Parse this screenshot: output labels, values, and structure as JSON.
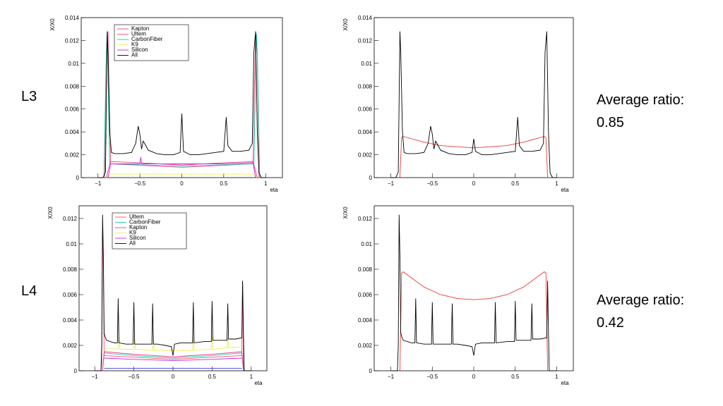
{
  "rows": [
    {
      "label": "L3",
      "ratio_title": "Average ratio:",
      "ratio_value": "0.85"
    },
    {
      "label": "L4",
      "ratio_title": "Average ratio:",
      "ratio_value": "0.42"
    }
  ],
  "colors": {
    "All": "#000000",
    "Kapton": "#e8368f",
    "Ultem": "#ff4f7a",
    "CarbonFiber": "#18c9a8",
    "K9": "#ecec5a",
    "Silicon": "#cc22dd",
    "RedFit": "#e83a3a",
    "Blue": "#3b3bdb"
  },
  "chart_data": [
    {
      "type": "line",
      "panel": "L3-left",
      "xlabel": "eta",
      "ylabel": "X/X0",
      "xlim": [
        -1.2,
        1.2
      ],
      "ylim": [
        0,
        0.014
      ],
      "xticks": [
        -1,
        -0.5,
        0,
        0.5,
        1
      ],
      "xtick_labels": [
        "−1",
        "−0.5",
        "0",
        "0.5",
        "1"
      ],
      "yticks": [
        0,
        0.002,
        0.004,
        0.006,
        0.008,
        0.01,
        0.012,
        0.014
      ],
      "ytick_labels": [
        "0",
        "0.002",
        "0.004",
        "0.006",
        "0.008",
        "0.01",
        "0.012",
        "0.014"
      ],
      "legend": {
        "position": "top-left",
        "entries": [
          "Kapton",
          "Ultem",
          "CarbonFiber",
          "K9",
          "Silicon",
          "All"
        ]
      },
      "series": [
        {
          "name": "All",
          "color_key": "All",
          "x": [
            -1.0,
            -0.94,
            -0.91,
            -0.89,
            -0.88,
            -0.86,
            -0.84,
            -0.8,
            -0.7,
            -0.6,
            -0.55,
            -0.52,
            -0.5,
            -0.48,
            -0.46,
            -0.4,
            -0.3,
            -0.2,
            -0.1,
            -0.02,
            0.0,
            0.02,
            0.1,
            0.2,
            0.3,
            0.4,
            0.5,
            0.53,
            0.55,
            0.6,
            0.7,
            0.8,
            0.84,
            0.86,
            0.88,
            0.9,
            0.92,
            0.95,
            1.0
          ],
          "y": [
            0,
            0,
            0.0005,
            0.0128,
            0.011,
            0.004,
            0.0022,
            0.0021,
            0.0021,
            0.0022,
            0.003,
            0.0045,
            0.0038,
            0.0025,
            0.0032,
            0.0024,
            0.0021,
            0.002,
            0.002,
            0.0022,
            0.0056,
            0.0023,
            0.002,
            0.002,
            0.0021,
            0.0022,
            0.0023,
            0.0053,
            0.0028,
            0.0023,
            0.0023,
            0.0024,
            0.003,
            0.011,
            0.0128,
            0.004,
            0.0004,
            0,
            0
          ]
        },
        {
          "name": "Kapton",
          "color_key": "Kapton",
          "x": [
            -0.9,
            -0.85,
            -0.5,
            0,
            0.5,
            0.85,
            0.9
          ],
          "y": [
            0,
            0.0014,
            0.0013,
            0.0011,
            0.0013,
            0.0014,
            0
          ]
        },
        {
          "name": "Ultem",
          "color_key": "Ultem",
          "x": [
            -0.92,
            -0.9,
            -0.88,
            -0.85,
            0,
            0.85,
            0.88,
            0.9,
            0.92
          ],
          "y": [
            0,
            0.011,
            0.0128,
            0.0012,
            0.0009,
            0.0012,
            0.0128,
            0.011,
            0
          ]
        },
        {
          "name": "CarbonFiber",
          "color_key": "CarbonFiber",
          "x": [
            -0.93,
            -0.9,
            -0.89,
            -0.86,
            0,
            0.86,
            0.89,
            0.9,
            0.93
          ],
          "y": [
            0,
            0.011,
            0.0126,
            0.0012,
            0.001,
            0.0012,
            0.0126,
            0.011,
            0
          ]
        },
        {
          "name": "K9",
          "color_key": "K9",
          "x": [
            -0.9,
            -0.85,
            -0.5,
            0,
            0.5,
            0.85,
            0.9
          ],
          "y": [
            0,
            0.0003,
            0.0003,
            0.0003,
            0.0003,
            0.0003,
            0
          ]
        },
        {
          "name": "Silicon",
          "color_key": "Silicon",
          "x": [
            -0.88,
            -0.85,
            -0.5,
            -0.49,
            -0.48,
            0,
            0.5,
            0.85,
            0.88
          ],
          "y": [
            0,
            0.0012,
            0.0012,
            0.0018,
            0.0012,
            0.0012,
            0.0012,
            0.0013,
            0
          ]
        }
      ]
    },
    {
      "type": "line",
      "panel": "L3-right",
      "xlabel": "eta",
      "ylabel": "X/X0",
      "xlim": [
        -1.2,
        1.2
      ],
      "ylim": [
        0,
        0.014
      ],
      "xticks": [
        -1,
        -0.5,
        0,
        0.5,
        1
      ],
      "xtick_labels": [
        "−1",
        "−0.5",
        "0",
        "0.5",
        "1"
      ],
      "yticks": [
        0,
        0.002,
        0.004,
        0.006,
        0.008,
        0.01,
        0.012,
        0.014
      ],
      "ytick_labels": [
        "0",
        "0.002",
        "0.004",
        "0.006",
        "0.008",
        "0.01",
        "0.012",
        "0.014"
      ],
      "series": [
        {
          "color_key": "All",
          "x": [
            -1.0,
            -0.94,
            -0.91,
            -0.89,
            -0.88,
            -0.86,
            -0.84,
            -0.8,
            -0.7,
            -0.6,
            -0.55,
            -0.52,
            -0.5,
            -0.48,
            -0.46,
            -0.4,
            -0.3,
            -0.2,
            -0.1,
            -0.02,
            0.0,
            0.02,
            0.1,
            0.2,
            0.3,
            0.4,
            0.5,
            0.53,
            0.55,
            0.6,
            0.7,
            0.8,
            0.84,
            0.86,
            0.88,
            0.9,
            0.92,
            0.95,
            1.0
          ],
          "y": [
            0,
            0,
            0.0005,
            0.0128,
            0.011,
            0.004,
            0.0022,
            0.0021,
            0.0021,
            0.0022,
            0.003,
            0.0045,
            0.0038,
            0.0025,
            0.0032,
            0.0024,
            0.0021,
            0.002,
            0.002,
            0.0022,
            0.0034,
            0.0023,
            0.002,
            0.002,
            0.0021,
            0.0022,
            0.0023,
            0.0053,
            0.0028,
            0.0023,
            0.0023,
            0.0024,
            0.003,
            0.011,
            0.0128,
            0.004,
            0.0004,
            0,
            0
          ]
        },
        {
          "color_key": "RedFit",
          "x": [
            -0.89,
            -0.87,
            -0.85,
            -0.6,
            -0.4,
            -0.2,
            0,
            0.2,
            0.4,
            0.6,
            0.85,
            0.87,
            0.89
          ],
          "y": [
            0,
            0.0035,
            0.0036,
            0.0031,
            0.0028,
            0.0027,
            0.0026,
            0.0027,
            0.0028,
            0.0031,
            0.0036,
            0.0035,
            0
          ]
        }
      ]
    },
    {
      "type": "line",
      "panel": "L4-left",
      "xlabel": "eta",
      "ylabel": "X/X0",
      "xlim": [
        -1.2,
        1.2
      ],
      "ylim": [
        0,
        0.013
      ],
      "xticks": [
        -1,
        -0.5,
        0,
        0.5,
        1
      ],
      "xtick_labels": [
        "−1",
        "−0.5",
        "0",
        "0.5",
        "1"
      ],
      "yticks": [
        0,
        0.002,
        0.004,
        0.006,
        0.008,
        0.01,
        0.012
      ],
      "ytick_labels": [
        "0",
        "0.002",
        "0.004",
        "0.006",
        "0.008",
        "0.01",
        "0.012"
      ],
      "legend": {
        "position": "top-left",
        "entries": [
          "Ultem",
          "CarbonFiber",
          "Kapton",
          "K9",
          "Silicon",
          "All"
        ]
      },
      "series": [
        {
          "name": "All",
          "color_key": "All",
          "x": [
            -1.0,
            -0.92,
            -0.91,
            -0.9,
            -0.89,
            -0.88,
            -0.87,
            -0.85,
            -0.75,
            -0.71,
            -0.7,
            -0.69,
            -0.6,
            -0.51,
            -0.5,
            -0.49,
            -0.4,
            -0.27,
            -0.26,
            -0.25,
            -0.2,
            -0.1,
            -0.02,
            0.0,
            0.02,
            0.1,
            0.2,
            0.25,
            0.26,
            0.27,
            0.4,
            0.49,
            0.5,
            0.51,
            0.6,
            0.69,
            0.7,
            0.71,
            0.8,
            0.88,
            0.89,
            0.9,
            0.91,
            1.0
          ],
          "y": [
            0,
            0,
            0.002,
            0.0123,
            0.009,
            0.003,
            0.0027,
            0.0024,
            0.0022,
            0.0022,
            0.0057,
            0.0022,
            0.0021,
            0.0021,
            0.0054,
            0.0021,
            0.0021,
            0.0021,
            0.0053,
            0.0021,
            0.0021,
            0.002,
            0.0019,
            0.0012,
            0.0021,
            0.0022,
            0.0022,
            0.0022,
            0.0054,
            0.0022,
            0.0023,
            0.0023,
            0.0055,
            0.0024,
            0.0024,
            0.0024,
            0.0053,
            0.0025,
            0.0025,
            0.0026,
            0.0071,
            0.003,
            0,
            0
          ]
        },
        {
          "name": "Ultem",
          "color_key": "Ultem",
          "x": [
            -0.92,
            -0.91,
            -0.9,
            -0.89,
            -0.88,
            0,
            0.88,
            0.89,
            0.9,
            0.91
          ],
          "y": [
            0,
            0.0006,
            0.011,
            0.008,
            0.0012,
            0.0009,
            0.0012,
            0.007,
            0.0006,
            0
          ]
        },
        {
          "name": "CarbonFiber",
          "color_key": "CarbonFiber",
          "x": [
            -0.9,
            -0.88,
            -0.5,
            0,
            0.5,
            0.88,
            0.9
          ],
          "y": [
            0,
            0.0014,
            0.0012,
            0.001,
            0.0012,
            0.0014,
            0
          ]
        },
        {
          "name": "Kapton",
          "color_key": "Kapton",
          "x": [
            -0.9,
            -0.88,
            -0.5,
            0,
            0.5,
            0.88,
            0.9
          ],
          "y": [
            0,
            0.0015,
            0.0013,
            0.0011,
            0.0013,
            0.0015,
            0
          ]
        },
        {
          "name": "K9",
          "color_key": "K9",
          "x": [
            -0.88,
            -0.7,
            -0.69,
            -0.68,
            -0.5,
            -0.49,
            -0.48,
            -0.26,
            -0.25,
            -0.24,
            0,
            0.25,
            0.26,
            0.27,
            0.49,
            0.5,
            0.51,
            0.69,
            0.7,
            0.71,
            0.88
          ],
          "y": [
            0.0018,
            0.0017,
            0.0026,
            0.0017,
            0.0017,
            0.0027,
            0.0017,
            0.0016,
            0.0026,
            0.0016,
            0.0016,
            0.0016,
            0.0026,
            0.0016,
            0.0017,
            0.0027,
            0.0017,
            0.0018,
            0.0026,
            0.0018,
            0.0019
          ]
        },
        {
          "name": "Silicon",
          "color_key": "Silicon",
          "x": [
            -0.88,
            -0.5,
            0,
            0.5,
            0.88
          ],
          "y": [
            0.001,
            0.0009,
            0.0008,
            0.0009,
            0.001
          ]
        },
        {
          "color_key": "Blue",
          "x": [
            -0.88,
            0,
            0.88
          ],
          "y": [
            0.0002,
            0.0002,
            0.0002
          ]
        }
      ]
    },
    {
      "type": "line",
      "panel": "L4-right",
      "xlabel": "eta",
      "ylabel": "X/X0",
      "xlim": [
        -1.2,
        1.2
      ],
      "ylim": [
        0,
        0.013
      ],
      "xticks": [
        -1,
        -0.5,
        0,
        0.5,
        1
      ],
      "xtick_labels": [
        "−1",
        "−0.5",
        "0",
        "0.5",
        "1"
      ],
      "yticks": [
        0,
        0.002,
        0.004,
        0.006,
        0.008,
        0.01,
        0.012
      ],
      "ytick_labels": [
        "0",
        "0.002",
        "0.004",
        "0.006",
        "0.008",
        "0.01",
        "0.012"
      ],
      "series": [
        {
          "color_key": "All",
          "x": [
            -1.0,
            -0.92,
            -0.91,
            -0.9,
            -0.89,
            -0.88,
            -0.87,
            -0.85,
            -0.75,
            -0.71,
            -0.7,
            -0.69,
            -0.6,
            -0.51,
            -0.5,
            -0.49,
            -0.4,
            -0.27,
            -0.26,
            -0.25,
            -0.2,
            -0.1,
            -0.02,
            0.0,
            0.02,
            0.1,
            0.2,
            0.25,
            0.26,
            0.27,
            0.4,
            0.49,
            0.5,
            0.51,
            0.6,
            0.69,
            0.7,
            0.71,
            0.8,
            0.88,
            0.89,
            0.9,
            0.91,
            1.0
          ],
          "y": [
            0,
            0,
            0.002,
            0.0123,
            0.009,
            0.003,
            0.0027,
            0.0024,
            0.0022,
            0.0022,
            0.0057,
            0.0022,
            0.0021,
            0.0021,
            0.0054,
            0.0021,
            0.0021,
            0.0021,
            0.0053,
            0.0021,
            0.0021,
            0.002,
            0.0019,
            0.0012,
            0.0021,
            0.0022,
            0.0022,
            0.0022,
            0.0054,
            0.0022,
            0.0023,
            0.0023,
            0.0055,
            0.0024,
            0.0024,
            0.0024,
            0.0053,
            0.0025,
            0.0025,
            0.0026,
            0.0071,
            0.003,
            0,
            0
          ]
        },
        {
          "color_key": "RedFit",
          "x": [
            -0.89,
            -0.87,
            -0.85,
            -0.6,
            -0.4,
            -0.2,
            0,
            0.2,
            0.4,
            0.6,
            0.85,
            0.87,
            0.89
          ],
          "y": [
            0,
            0.0077,
            0.0078,
            0.0066,
            0.006,
            0.0057,
            0.0056,
            0.0057,
            0.006,
            0.0066,
            0.0078,
            0.0077,
            0
          ]
        }
      ]
    }
  ]
}
